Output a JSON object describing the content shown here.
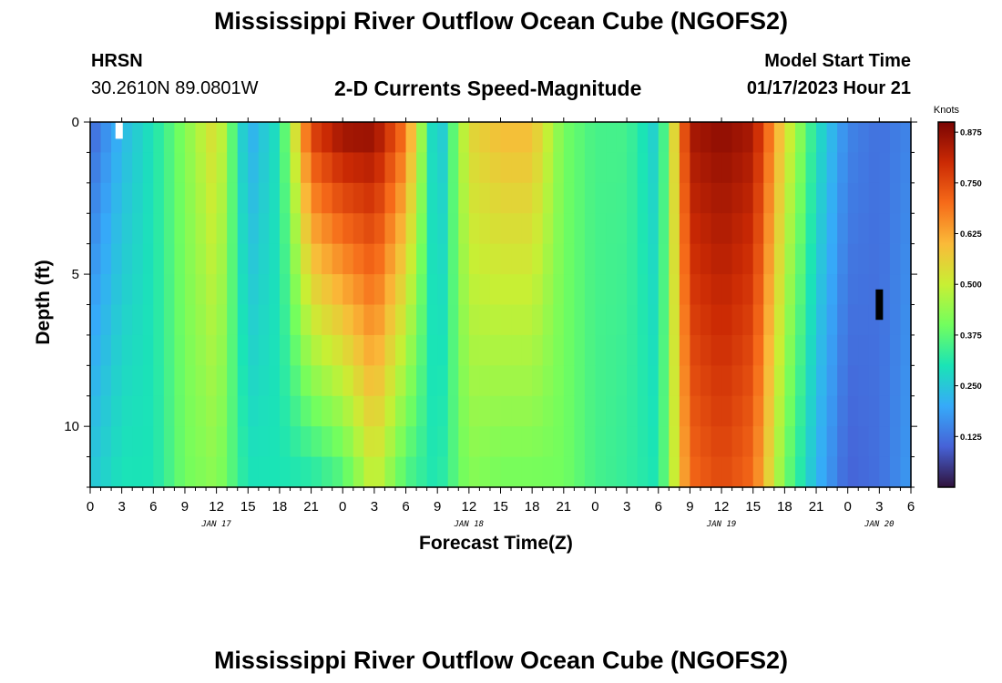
{
  "page_title": "Mississippi River Outflow Ocean Cube (NGOFS2)",
  "station": {
    "name": "HRSN",
    "coords": "30.2610N  89.0801W"
  },
  "plot_title": "2-D Currents Speed-Magnitude",
  "model_start": {
    "label": "Model Start Time",
    "value": "01/17/2023 Hour 21"
  },
  "footer_title": "Mississippi River Outflow Ocean Cube (NGOFS2)",
  "colors": {
    "colormap": [
      "#30123b",
      "#4662d7",
      "#36aaf9",
      "#1ae4b6",
      "#72fe5e",
      "#c8ef34",
      "#faba39",
      "#f66b19",
      "#cb2a04",
      "#7a0403"
    ],
    "flag_white": "#ffffff",
    "flag_black": "#000000"
  },
  "chart_data": {
    "type": "heatmap",
    "title": "2-D Currents Speed-Magnitude",
    "xlabel": "Forecast Time(Z)",
    "ylabel": "Depth (ft)",
    "x_tick_labels": [
      "0",
      "3",
      "6",
      "9",
      "12",
      "15",
      "18",
      "21",
      "0",
      "3",
      "6",
      "9",
      "12",
      "15",
      "18",
      "21",
      "0",
      "3",
      "6",
      "9",
      "12",
      "15",
      "18",
      "21",
      "0",
      "3",
      "6"
    ],
    "x_range_hours": [
      0,
      78
    ],
    "y_range_ft": [
      0,
      12
    ],
    "y_ticks": [
      0,
      5,
      10
    ],
    "month_labels": [
      {
        "label": "JAN 17",
        "hour": 12
      },
      {
        "label": "JAN 18",
        "hour": 36
      },
      {
        "label": "JAN 19",
        "hour": 60
      },
      {
        "label": "JAN 20",
        "hour": 75
      }
    ],
    "colorbar": {
      "label": "Knots",
      "ticks": [
        "0.875",
        "0.750",
        "0.625",
        "0.500",
        "0.375",
        "0.250",
        "0.125"
      ],
      "tick_values": [
        0.875,
        0.75,
        0.625,
        0.5,
        0.375,
        0.25,
        0.125
      ],
      "range": [
        0,
        0.9
      ]
    },
    "hours": [
      0,
      3,
      6,
      9,
      12,
      15,
      18,
      21,
      24,
      27,
      30,
      33,
      36,
      39,
      42,
      45,
      48,
      51,
      54,
      57,
      60,
      63,
      66,
      69,
      72,
      75,
      78
    ],
    "surface_speed_knots": [
      0.1,
      0.22,
      0.3,
      0.42,
      0.55,
      0.2,
      0.3,
      0.78,
      0.88,
      0.88,
      0.7,
      0.2,
      0.55,
      0.6,
      0.6,
      0.4,
      0.35,
      0.35,
      0.25,
      0.85,
      0.88,
      0.85,
      0.55,
      0.3,
      0.15,
      0.12,
      0.15
    ],
    "bottom_speed_knots": [
      0.25,
      0.3,
      0.3,
      0.4,
      0.43,
      0.3,
      0.3,
      0.3,
      0.35,
      0.5,
      0.35,
      0.3,
      0.42,
      0.4,
      0.4,
      0.4,
      0.35,
      0.33,
      0.3,
      0.7,
      0.75,
      0.7,
      0.4,
      0.22,
      0.1,
      0.12,
      0.18
    ],
    "flags": [
      {
        "hour": 2.75,
        "depth_ft": [
          0,
          0.55
        ],
        "color": "white"
      },
      {
        "hour": 75.0,
        "depth_ft": [
          5.5,
          6.5
        ],
        "color": "black"
      }
    ]
  }
}
